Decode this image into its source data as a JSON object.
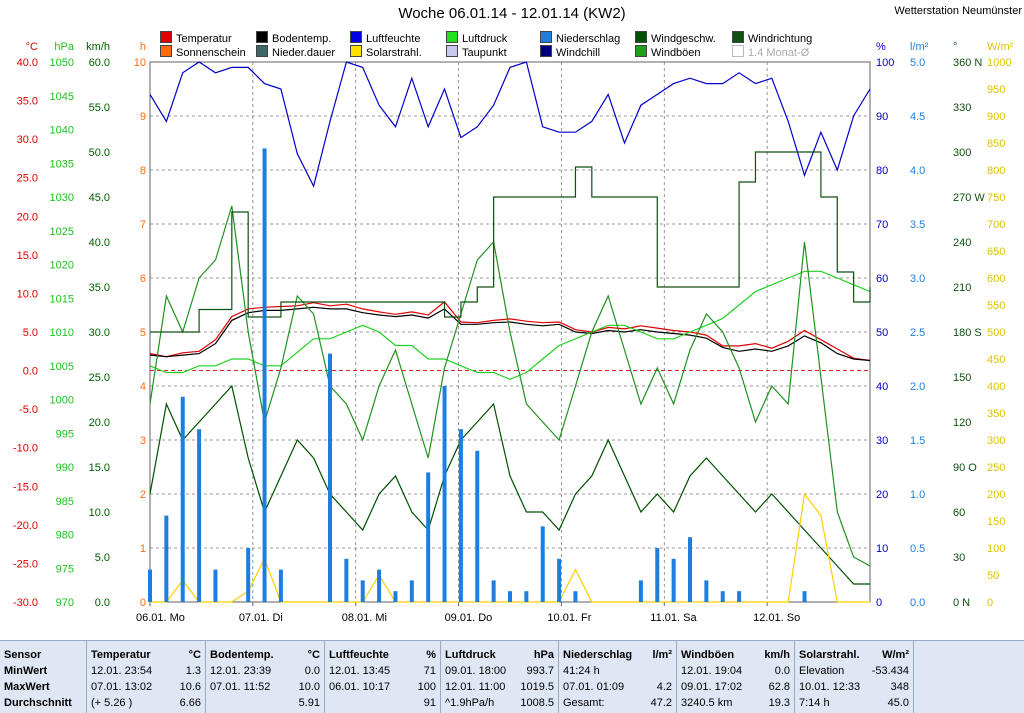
{
  "title": "Woche 06.01.14 - 12.01.14 (KW2)",
  "station": "Wetterstation Neumünster",
  "colors": {
    "temperature": "#e00000",
    "ground_temp": "#000000",
    "humidity": "#0000c8",
    "pressure": "#20d020",
    "precip": "#1c7fe0",
    "wind_speed": "#005000",
    "wind_dir": "#105010",
    "sunshine": "#ff6a10",
    "solar": "#ffd000",
    "dewpoint": "#a0a0d0",
    "windchill": "#000080",
    "gusts": "#209020"
  },
  "legend": [
    {
      "label": "Temperatur",
      "color": "#e00000"
    },
    {
      "label": "Sonnenschein",
      "color": "#ff6a10"
    },
    {
      "label": "Bodentemp.",
      "color": "#000000"
    },
    {
      "label": "Nieder.dauer",
      "color": "#406868"
    },
    {
      "label": "Luftfeuchte",
      "color": "#0000e0"
    },
    {
      "label": "Solarstrahl.",
      "color": "#ffe000"
    },
    {
      "label": "Luftdruck",
      "color": "#20e020"
    },
    {
      "label": "Taupunkt",
      "color": "#c8c8f0"
    },
    {
      "label": "Niederschlag",
      "color": "#1c7fe0"
    },
    {
      "label": "Windchill",
      "color": "#000080"
    },
    {
      "label": "Windgeschw.",
      "color": "#005000"
    },
    {
      "label": "Windböen",
      "color": "#20a020"
    },
    {
      "label": "Windrichtung",
      "color": "#105010"
    },
    {
      "label": "1.4 Monat-Ø",
      "color": "#ffffff"
    }
  ],
  "axes": {
    "temp": {
      "unit": "°C",
      "ticks": [
        "40.0",
        "35.0",
        "30.0",
        "25.0",
        "20.0",
        "15.0",
        "10.0",
        "5.0",
        "0.0",
        "-5.0",
        "-10.0",
        "-15.0",
        "-20.0",
        "-25.0",
        "-30.0"
      ],
      "color": "#e00000"
    },
    "hpa": {
      "unit": "hPa",
      "ticks": [
        "1050",
        "1045",
        "1040",
        "1035",
        "1030",
        "1025",
        "1020",
        "1015",
        "1010",
        "1005",
        "1000",
        "995",
        "990",
        "985",
        "980",
        "975",
        "970"
      ],
      "color": "#20c020"
    },
    "kmh": {
      "unit": "km/h",
      "ticks": [
        "60.0",
        "55.0",
        "50.0",
        "45.0",
        "40.0",
        "35.0",
        "30.0",
        "25.0",
        "20.0",
        "15.0",
        "10.0",
        "5.0",
        "0.0"
      ],
      "color": "#006000"
    },
    "hours": {
      "unit": "h",
      "ticks": [
        "10",
        "9",
        "8",
        "7",
        "6",
        "5",
        "4",
        "3",
        "2",
        "1",
        "0"
      ],
      "color": "#ff6a10"
    },
    "pct": {
      "unit": "%",
      "ticks": [
        "100",
        "90",
        "80",
        "70",
        "60",
        "50",
        "40",
        "30",
        "20",
        "10",
        "0"
      ],
      "color": "#0000c8"
    },
    "lm2": {
      "unit": "l/m²",
      "ticks": [
        "5.0",
        "4.5",
        "4.0",
        "3.5",
        "3.0",
        "2.5",
        "2.0",
        "1.5",
        "1.0",
        "0.5",
        "0.0"
      ],
      "color": "#1c7fe0"
    },
    "deg": {
      "unit": "°",
      "ticks": [
        "360 N",
        "330",
        "300",
        "270 W",
        "240",
        "210",
        "180 S",
        "150",
        "120",
        "90 O",
        "60",
        "30",
        "0 N"
      ],
      "color": "#105010"
    },
    "wm2": {
      "unit": "W/m²",
      "ticks": [
        "1000",
        "950",
        "900",
        "850",
        "800",
        "750",
        "700",
        "650",
        "600",
        "550",
        "500",
        "450",
        "400",
        "350",
        "300",
        "250",
        "200",
        "150",
        "100",
        "50",
        "0"
      ],
      "color": "#e0c000"
    }
  },
  "days": [
    "06.01. Mo",
    "07.01. Di",
    "08.01. Mi",
    "09.01. Do",
    "10.01. Fr",
    "11.01. Sa",
    "12.01. So"
  ],
  "chart_data": {
    "type": "line",
    "title": "Woche 06.01.14 - 12.01.14 (KW2)",
    "x_start": "06.01.14 00:00",
    "x_end": "13.01.14 00:00",
    "x_step_hours": 6,
    "grid": true,
    "legend_position": "top",
    "series": [
      {
        "name": "Temperatur",
        "unit": "°C",
        "axis": "temp",
        "values": [
          2.2,
          1.8,
          2.3,
          2.5,
          4.0,
          7.0,
          8.0,
          8.2,
          8.3,
          8.4,
          8.8,
          8.4,
          8.6,
          8.0,
          7.6,
          7.3,
          7.6,
          7.2,
          8.9,
          6.3,
          6.2,
          6.5,
          6.7,
          6.4,
          6.2,
          6.3,
          5.3,
          5.0,
          5.6,
          5.4,
          5.8,
          5.5,
          5.2,
          5.0,
          4.6,
          3.2,
          3.2,
          3.5,
          2.9,
          3.8,
          5.2,
          4.0,
          2.8,
          1.6,
          1.3
        ]
      },
      {
        "name": "Bodentemp.",
        "unit": "°C",
        "axis": "temp",
        "values": [
          2.0,
          1.8,
          2.0,
          2.2,
          3.5,
          6.5,
          7.5,
          7.8,
          7.8,
          8.0,
          8.2,
          8.0,
          8.0,
          7.5,
          7.2,
          7.0,
          7.2,
          6.8,
          8.0,
          6.0,
          6.0,
          6.2,
          6.3,
          6.0,
          5.8,
          6.0,
          5.0,
          4.8,
          5.2,
          5.0,
          5.3,
          5.0,
          4.8,
          4.6,
          4.2,
          3.0,
          2.5,
          2.8,
          2.5,
          3.2,
          4.5,
          3.6,
          2.2,
          1.5,
          1.3
        ]
      },
      {
        "name": "Luftfeuchte",
        "unit": "%",
        "axis": "pct",
        "values": [
          94,
          89,
          98,
          100,
          98,
          99,
          99,
          96,
          95,
          83,
          77,
          89,
          100,
          99,
          92,
          88,
          97,
          88,
          95,
          86,
          88,
          92,
          99,
          100,
          88,
          87,
          87,
          89,
          94,
          85,
          92,
          94,
          96,
          97,
          96,
          96,
          98,
          96,
          97,
          89,
          79,
          87,
          80,
          90,
          95
        ]
      },
      {
        "name": "Luftdruck",
        "unit": "hPa",
        "axis": "hpa",
        "values": [
          1005,
          1004,
          1004,
          1005,
          1005,
          1006,
          1006,
          1005,
          1005,
          1007,
          1009,
          1009,
          1010,
          1011,
          1010,
          1008,
          1008,
          1006,
          1006,
          1005,
          1004,
          1004,
          1003,
          1004,
          1006,
          1008,
          1009,
          1010,
          1011,
          1011,
          1010,
          1009,
          1009,
          1010,
          1011,
          1012,
          1014,
          1016,
          1017,
          1018,
          1019,
          1019,
          1018,
          1017,
          1016
        ]
      },
      {
        "name": "Windgeschw.",
        "unit": "km/h",
        "axis": "kmh",
        "values": [
          12,
          22,
          18,
          20,
          22,
          24,
          16,
          10,
          14,
          18,
          16,
          12,
          10,
          8,
          12,
          14,
          10,
          8,
          14,
          18,
          20,
          22,
          14,
          10,
          10,
          8,
          12,
          14,
          18,
          14,
          10,
          12,
          10,
          14,
          16,
          14,
          12,
          10,
          12,
          10,
          8,
          6,
          4,
          2,
          2
        ]
      },
      {
        "name": "Windböen",
        "unit": "km/h",
        "axis": "kmh",
        "values": [
          22,
          34,
          30,
          36,
          38,
          44,
          30,
          20,
          26,
          34,
          32,
          24,
          22,
          18,
          24,
          28,
          22,
          16,
          26,
          32,
          38,
          40,
          30,
          22,
          20,
          18,
          24,
          30,
          34,
          28,
          22,
          26,
          22,
          28,
          32,
          30,
          26,
          20,
          24,
          22,
          40,
          25,
          10,
          5,
          4
        ]
      },
      {
        "name": "Windrichtung",
        "unit": "°",
        "axis": "deg",
        "values": [
          180,
          180,
          180,
          195,
          195,
          260,
          190,
          190,
          200,
          200,
          200,
          200,
          200,
          200,
          200,
          200,
          200,
          200,
          190,
          200,
          210,
          270,
          270,
          270,
          270,
          270,
          290,
          270,
          270,
          270,
          270,
          210,
          210,
          210,
          210,
          210,
          280,
          300,
          300,
          300,
          300,
          270,
          220,
          200,
          210
        ]
      },
      {
        "name": "Solarstrahl.",
        "unit": "W/m²",
        "axis": "wm2",
        "values": [
          0,
          0,
          40,
          0,
          0,
          0,
          20,
          80,
          0,
          0,
          0,
          0,
          0,
          0,
          50,
          0,
          0,
          0,
          0,
          0,
          0,
          0,
          0,
          0,
          0,
          0,
          60,
          0,
          0,
          0,
          0,
          0,
          0,
          0,
          0,
          0,
          0,
          0,
          0,
          0,
          200,
          160,
          0,
          0,
          0
        ]
      },
      {
        "name": "Niederschlag",
        "unit": "l/m²",
        "axis": "lm2",
        "values": [
          0.3,
          0.8,
          1.9,
          1.6,
          0.3,
          0.0,
          0.5,
          4.2,
          0.3,
          0.0,
          0.0,
          2.3,
          0.4,
          0.2,
          0.3,
          0.1,
          0.2,
          1.2,
          2.0,
          1.6,
          1.4,
          0.2,
          0.1,
          0.1,
          0.7,
          0.4,
          0.1,
          0.0,
          0.0,
          0.0,
          0.2,
          0.5,
          0.4,
          0.6,
          0.2,
          0.1,
          0.1,
          0.0,
          0.0,
          0.0,
          0.1,
          0.0,
          0.0,
          0.0,
          0.0
        ]
      }
    ]
  },
  "stats": {
    "temp": {
      "title": "Temperatur",
      "unit": "°C",
      "min_time": "12.01.  23:54",
      "min_val": "1.3",
      "max_time": "07.01.  13:02",
      "max_val": "10.6",
      "avg_extra": "(+ 5.26 )",
      "avg_val": "6.66"
    },
    "ground": {
      "title": "Bodentemp.",
      "unit": "°C",
      "min_time": "12.01.  23:39",
      "min_val": "0.0",
      "max_time": "07.01.  11:52",
      "max_val": "10.0",
      "avg_val": "5.91"
    },
    "humidity": {
      "title": "Luftfeuchte",
      "unit": "%",
      "min_time": "12.01.  13:45",
      "min_val": "71",
      "max_time": "06.01.  10:17",
      "max_val": "100",
      "avg_val": "91"
    },
    "pressure": {
      "title": "Luftdruck",
      "unit": "hPa",
      "min_time": "09.01.  18:00",
      "min_val": "993.7",
      "max_time": "12.01.  11:00",
      "max_val": "1019.5",
      "avg_extra": "^1.9hPa/h",
      "avg_val": "1008.5"
    },
    "precip": {
      "title": "Niederschlag",
      "unit": "l/m²",
      "row1": "41:24 h",
      "max_time": "07.01.  01:09",
      "max_val": "4.2",
      "avg_label": "Gesamt:",
      "avg_val": "47.2"
    },
    "gusts": {
      "title": "Windböen",
      "unit": "km/h",
      "min_time": "12.01.  19:04",
      "min_val": "0.0",
      "max_time": "09.01.  17:02",
      "max_val": "62.8",
      "avg_extra": "3240.5 km",
      "avg_val": "19.3"
    },
    "solar": {
      "title": "Solarstrahl.",
      "unit": "W/m²",
      "min_time": "Elevation",
      "min_val": "-53.434",
      "max_time": "10.01.  12:33",
      "max_val": "348",
      "avg_extra": "7:14 h",
      "avg_val": "45.0"
    },
    "labels": {
      "sensor": "Sensor",
      "min": "MinWert",
      "max": "MaxWert",
      "avg": "Durchschnitt"
    }
  }
}
